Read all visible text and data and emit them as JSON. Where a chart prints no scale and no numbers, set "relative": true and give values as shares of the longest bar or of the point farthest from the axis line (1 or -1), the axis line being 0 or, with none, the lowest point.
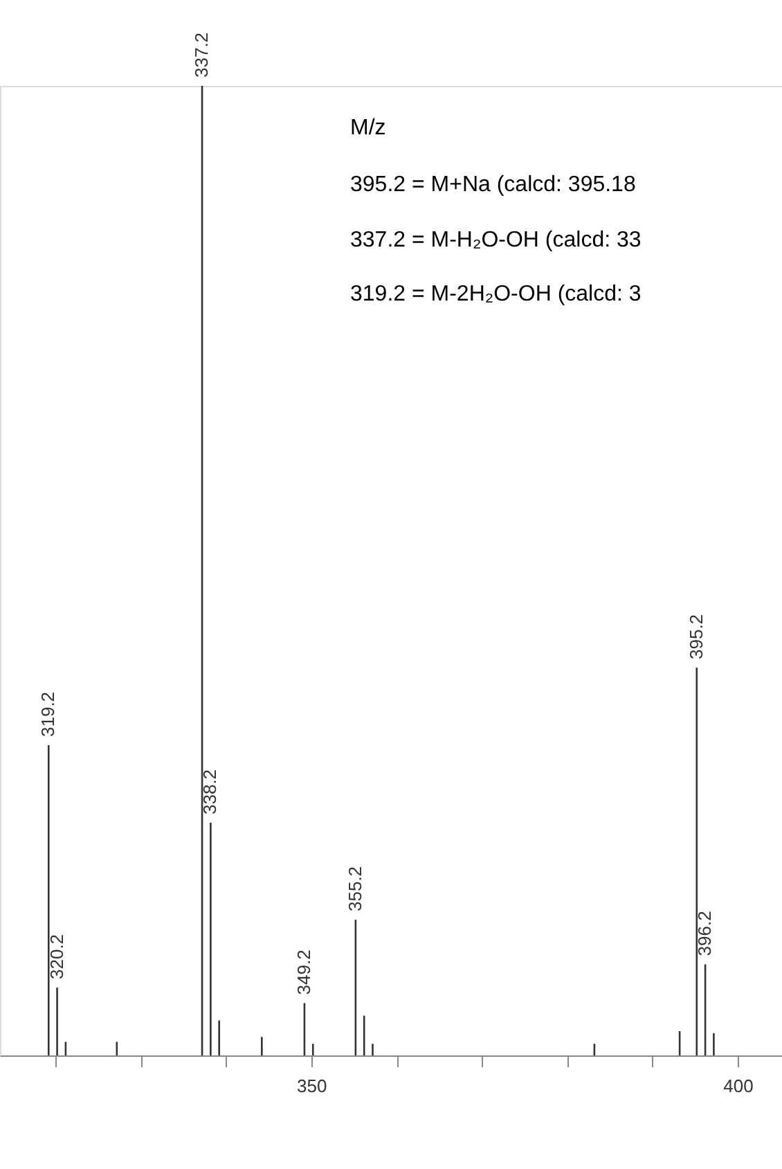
{
  "chart_data": {
    "type": "bar",
    "relative": true,
    "color": "#333333",
    "grid": false,
    "x": [
      319.2,
      320.2,
      321.2,
      327.2,
      337.2,
      338.2,
      339.2,
      344.2,
      349.2,
      350.2,
      355.2,
      356.2,
      357.2,
      383.2,
      393.2,
      395.2,
      396.2,
      397.2
    ],
    "values": [
      0.32,
      0.07,
      0.014,
      0.014,
      1,
      0.24,
      0.036,
      0.019,
      0.054,
      0.012,
      0.14,
      0.041,
      0.012,
      0.012,
      0.025,
      0.4,
      0.094,
      0.023
    ],
    "xlim": [
      313.5,
      405.2
    ],
    "xticks": [
      {
        "value": 320,
        "label": null
      },
      {
        "value": 330,
        "label": null
      },
      {
        "value": 340,
        "label": null
      },
      350,
      {
        "value": 360,
        "label": null
      },
      {
        "value": 370,
        "label": null
      },
      {
        "value": 380,
        "label": null
      },
      {
        "value": 390,
        "label": null
      },
      400
    ],
    "annotations": [
      "M/z",
      "395.2 = M+Na   (calcd: 395.18",
      "337.2 = M-H₂O-OH (calcd: 33",
      "319.2 = M-2H₂O-OH (calcd: 3",
      {
        "text": "319.2",
        "x": 319.2,
        "y": 0.32
      },
      {
        "text": "320.2",
        "x": 320.2,
        "y": 0.07
      },
      {
        "text": "337.2",
        "x": 337.2,
        "y": 1
      },
      {
        "text": "338.2",
        "x": 338.2,
        "y": 0.24
      },
      {
        "text": "349.2",
        "x": 349.2,
        "y": 0.054
      },
      {
        "text": "355.2",
        "x": 355.2,
        "y": 0.14
      },
      {
        "text": "395.2",
        "x": 395.2,
        "y": 0.4
      },
      {
        "text": "396.2",
        "x": 396.2,
        "y": 0.094
      }
    ]
  }
}
